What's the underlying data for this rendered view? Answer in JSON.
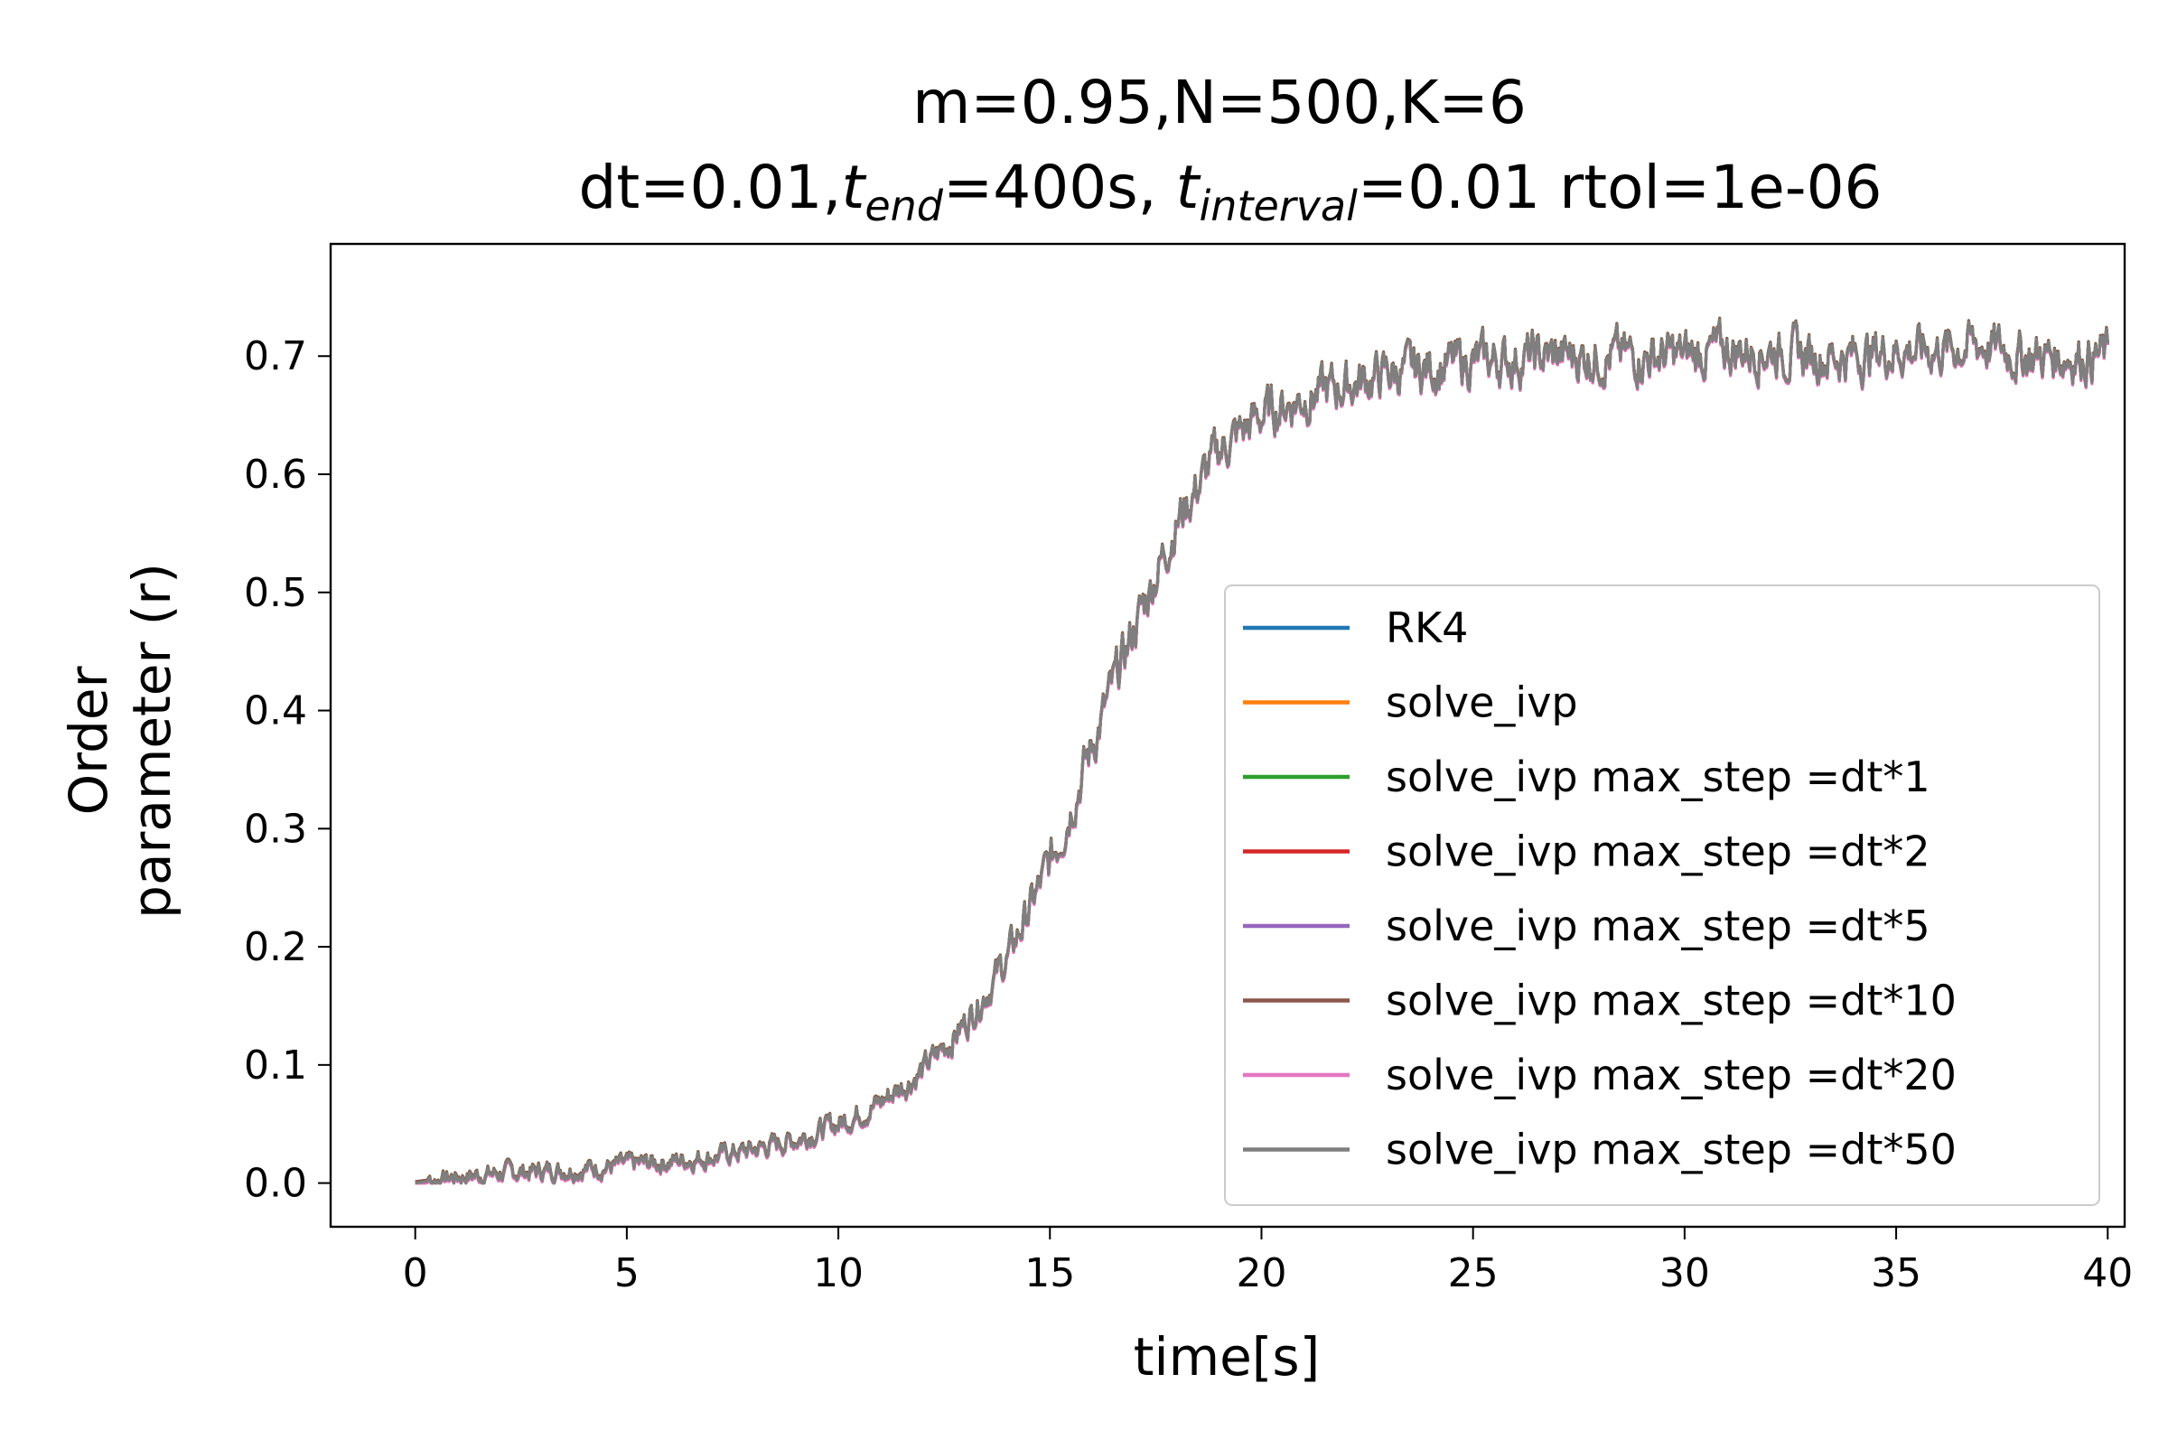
{
  "chart_data": {
    "type": "line",
    "title_line1": "m=0.95,N=500,K=6",
    "title_line2": {
      "p1": "dt=0.01,",
      "t1": "t",
      "t1_sub": "end",
      "p2": "=400s, ",
      "t2": "t",
      "t2_sub": "interval",
      "p3": "=0.01 rtol=1e-06"
    },
    "xlabel": "time[s]",
    "ylabel_line1": "Order",
    "ylabel_line2": "parameter (r)",
    "xlim": [
      -2,
      40.4
    ],
    "ylim": [
      -0.037,
      0.795
    ],
    "xticks": [
      0,
      5,
      10,
      15,
      20,
      25,
      30,
      35,
      40
    ],
    "xtick_labels": [
      "0",
      "5",
      "10",
      "15",
      "20",
      "25",
      "30",
      "35",
      "40"
    ],
    "yticks": [
      0.0,
      0.1,
      0.2,
      0.3,
      0.4,
      0.5,
      0.6,
      0.7
    ],
    "ytick_labels": [
      "0.0",
      "0.1",
      "0.2",
      "0.3",
      "0.4",
      "0.5",
      "0.6",
      "0.7"
    ],
    "grid": false,
    "legend_position": "lower-right",
    "x": [
      0,
      1,
      2,
      3,
      4,
      5,
      6,
      7,
      8,
      9,
      10,
      11,
      12,
      13,
      14,
      15,
      16,
      17,
      18,
      19,
      20,
      21,
      22,
      23,
      24,
      25,
      26,
      27,
      28,
      29,
      30,
      31,
      32,
      33,
      34,
      35,
      36,
      37,
      38,
      39,
      40
    ],
    "series": [
      {
        "name": "RK4",
        "color": "#1f77b4",
        "values": [
          0.0,
          0.005,
          0.008,
          0.01,
          0.012,
          0.015,
          0.018,
          0.022,
          0.028,
          0.037,
          0.05,
          0.068,
          0.095,
          0.135,
          0.19,
          0.27,
          0.37,
          0.47,
          0.56,
          0.62,
          0.65,
          0.665,
          0.675,
          0.685,
          0.69,
          0.695,
          0.697,
          0.7,
          0.7,
          0.7,
          0.7,
          0.705,
          0.705,
          0.7,
          0.7,
          0.705,
          0.705,
          0.71,
          0.7,
          0.7,
          0.7
        ]
      },
      {
        "name": "solve_ivp",
        "color": "#ff7f0e",
        "values": [
          0.0,
          0.005,
          0.008,
          0.01,
          0.012,
          0.015,
          0.018,
          0.022,
          0.028,
          0.037,
          0.05,
          0.068,
          0.095,
          0.135,
          0.19,
          0.27,
          0.37,
          0.47,
          0.56,
          0.62,
          0.65,
          0.665,
          0.675,
          0.685,
          0.69,
          0.695,
          0.697,
          0.7,
          0.7,
          0.7,
          0.7,
          0.705,
          0.705,
          0.7,
          0.7,
          0.705,
          0.705,
          0.71,
          0.7,
          0.7,
          0.7
        ]
      },
      {
        "name": "solve_ivp max_step =dt*1",
        "color": "#2ca02c",
        "values": [
          0.0,
          0.005,
          0.008,
          0.01,
          0.012,
          0.015,
          0.018,
          0.022,
          0.028,
          0.037,
          0.05,
          0.068,
          0.095,
          0.135,
          0.19,
          0.27,
          0.37,
          0.47,
          0.56,
          0.62,
          0.65,
          0.665,
          0.675,
          0.685,
          0.69,
          0.695,
          0.697,
          0.7,
          0.7,
          0.7,
          0.7,
          0.705,
          0.705,
          0.7,
          0.7,
          0.705,
          0.705,
          0.71,
          0.7,
          0.7,
          0.7
        ]
      },
      {
        "name": "solve_ivp max_step =dt*2",
        "color": "#d62728",
        "values": [
          0.0,
          0.005,
          0.008,
          0.01,
          0.012,
          0.015,
          0.018,
          0.022,
          0.028,
          0.037,
          0.05,
          0.068,
          0.095,
          0.135,
          0.19,
          0.27,
          0.37,
          0.47,
          0.56,
          0.62,
          0.65,
          0.665,
          0.675,
          0.685,
          0.69,
          0.695,
          0.697,
          0.7,
          0.7,
          0.7,
          0.7,
          0.705,
          0.705,
          0.7,
          0.7,
          0.705,
          0.705,
          0.71,
          0.7,
          0.7,
          0.7
        ]
      },
      {
        "name": "solve_ivp max_step =dt*5",
        "color": "#9467bd",
        "values": [
          0.0,
          0.005,
          0.008,
          0.01,
          0.012,
          0.015,
          0.018,
          0.022,
          0.028,
          0.037,
          0.05,
          0.068,
          0.095,
          0.135,
          0.19,
          0.27,
          0.37,
          0.47,
          0.56,
          0.62,
          0.65,
          0.665,
          0.675,
          0.685,
          0.69,
          0.695,
          0.697,
          0.7,
          0.7,
          0.7,
          0.7,
          0.705,
          0.705,
          0.7,
          0.7,
          0.705,
          0.705,
          0.71,
          0.7,
          0.7,
          0.7
        ]
      },
      {
        "name": "solve_ivp max_step =dt*10",
        "color": "#8c564b",
        "values": [
          0.0,
          0.005,
          0.008,
          0.01,
          0.012,
          0.015,
          0.018,
          0.022,
          0.028,
          0.037,
          0.05,
          0.068,
          0.095,
          0.135,
          0.19,
          0.27,
          0.37,
          0.47,
          0.56,
          0.62,
          0.65,
          0.665,
          0.675,
          0.685,
          0.69,
          0.695,
          0.697,
          0.7,
          0.7,
          0.7,
          0.7,
          0.705,
          0.705,
          0.7,
          0.7,
          0.705,
          0.705,
          0.71,
          0.7,
          0.7,
          0.7
        ]
      },
      {
        "name": "solve_ivp max_step =dt*20",
        "color": "#e377c2",
        "values": [
          0.0,
          0.005,
          0.008,
          0.01,
          0.012,
          0.015,
          0.018,
          0.022,
          0.028,
          0.037,
          0.05,
          0.068,
          0.095,
          0.135,
          0.19,
          0.27,
          0.37,
          0.47,
          0.56,
          0.62,
          0.65,
          0.665,
          0.675,
          0.685,
          0.69,
          0.695,
          0.697,
          0.7,
          0.7,
          0.7,
          0.7,
          0.705,
          0.705,
          0.7,
          0.7,
          0.705,
          0.705,
          0.71,
          0.7,
          0.7,
          0.7
        ]
      },
      {
        "name": "solve_ivp max_step =dt*50",
        "color": "#7f7f7f",
        "values": [
          0.0,
          0.005,
          0.008,
          0.01,
          0.012,
          0.015,
          0.018,
          0.022,
          0.028,
          0.037,
          0.05,
          0.068,
          0.095,
          0.135,
          0.19,
          0.27,
          0.37,
          0.47,
          0.56,
          0.62,
          0.65,
          0.665,
          0.675,
          0.685,
          0.69,
          0.695,
          0.697,
          0.7,
          0.7,
          0.7,
          0.7,
          0.705,
          0.705,
          0.7,
          0.7,
          0.705,
          0.705,
          0.71,
          0.7,
          0.7,
          0.7
        ]
      }
    ]
  }
}
